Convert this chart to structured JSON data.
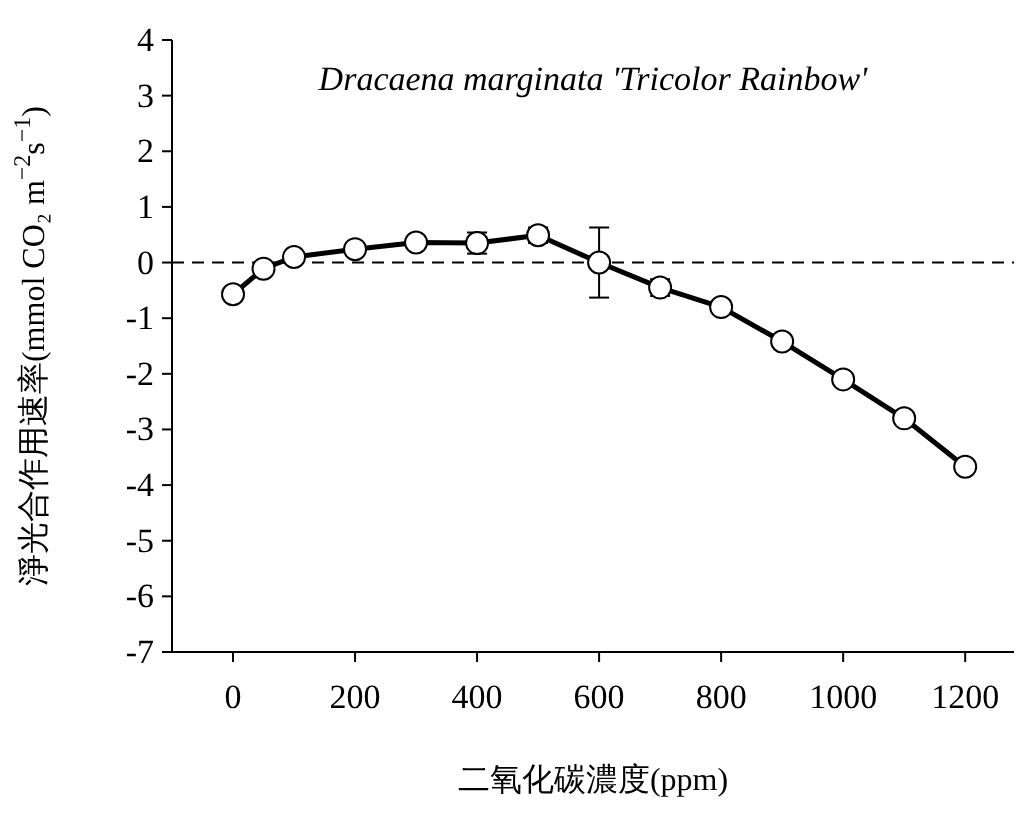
{
  "chart_data": {
    "type": "line",
    "title": "Dracaena marginata 'Tricolor Rainbow'",
    "xlabel": "二氧化碳濃度(ppm)",
    "ylabel": "淨光合作用速率(mmol CO₂ m$^{−2}$s$^{−1}$)",
    "x": [
      0,
      50,
      100,
      200,
      300,
      400,
      500,
      600,
      700,
      800,
      900,
      1000,
      1100,
      1200
    ],
    "series": [
      {
        "color": "#000000",
        "values": [
          -0.57,
          -0.11,
          0.1,
          0.24,
          0.36,
          0.35,
          0.49,
          0.0,
          -0.45,
          -0.8,
          -1.42,
          -2.1,
          -2.8,
          -3.67
        ],
        "errors": [
          null,
          null,
          null,
          null,
          null,
          0.19,
          0.14,
          0.63,
          0.15,
          null,
          null,
          0.1,
          0.1,
          null
        ]
      }
    ],
    "marker": "circle",
    "line_style": "solid",
    "grid": false,
    "xlim": [
      -100,
      1280
    ],
    "xticks": [
      0,
      200,
      400,
      600,
      800,
      1000,
      1200
    ],
    "ylim": [
      -7,
      4
    ],
    "yticks": [
      -7,
      -6,
      -5,
      -4,
      -3,
      -2,
      -1,
      0,
      1,
      2,
      3,
      4
    ],
    "ref_lines": [
      {
        "axis": "y",
        "value": 0,
        "line_style": "dashed",
        "color": "#000000"
      }
    ]
  }
}
